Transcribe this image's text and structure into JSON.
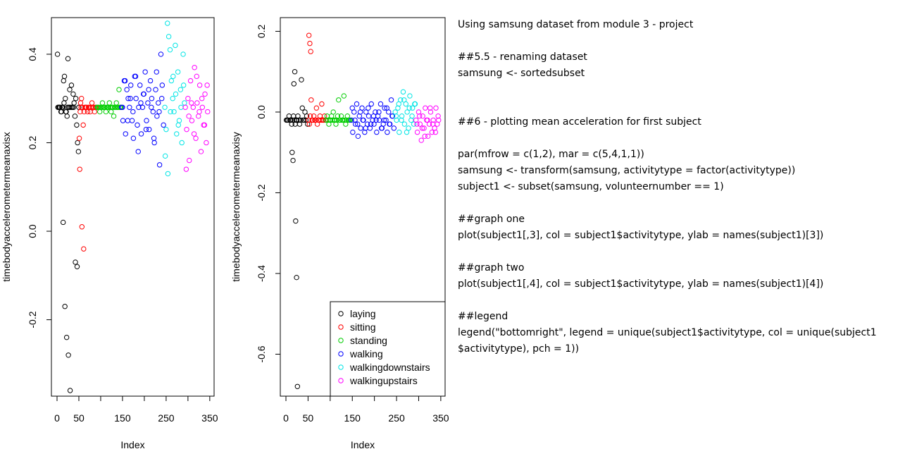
{
  "colors": {
    "laying": "#000000",
    "sitting": "#ff0000",
    "standing": "#00cd00",
    "walking": "#0000ff",
    "walkingdownstairs": "#00e5e5",
    "walkingupstairs": "#ff00ff"
  },
  "chart_data": [
    {
      "type": "scatter",
      "title": "",
      "xlabel": "Index",
      "ylabel": "timebodyaccelerometermeanaxisx",
      "xlim": [
        0,
        347
      ],
      "ylim": [
        -0.36,
        0.47
      ],
      "xticks": [
        0,
        50,
        150,
        250,
        350
      ],
      "yticks": [
        -0.2,
        0.0,
        0.2,
        0.4
      ],
      "grid": false,
      "series": [
        {
          "name": "laying",
          "color": "#000000",
          "x": [
            1,
            3,
            5,
            7,
            9,
            11,
            13,
            15,
            17,
            19,
            21,
            23,
            25,
            27,
            29,
            31,
            33,
            35,
            37,
            39,
            41,
            43,
            45,
            47,
            49,
            2,
            6,
            10,
            14,
            18,
            22,
            26,
            30,
            34,
            38,
            42,
            46,
            50,
            12,
            16,
            20,
            24,
            28
          ],
          "y": [
            0.4,
            0.28,
            0.28,
            0.28,
            0.27,
            0.28,
            0.28,
            0.34,
            0.35,
            0.3,
            0.27,
            0.26,
            0.39,
            0.28,
            0.32,
            0.28,
            0.33,
            0.28,
            0.31,
            0.29,
            0.26,
            0.3,
            0.24,
            0.2,
            0.18,
            0.28,
            0.28,
            0.27,
            0.02,
            -0.17,
            -0.24,
            -0.28,
            -0.36,
            0.28,
            0.28,
            -0.07,
            -0.08,
            0.28,
            0.28,
            0.29,
            0.27,
            0.28,
            0.28
          ]
        },
        {
          "name": "sitting",
          "color": "#ff0000",
          "x": [
            52,
            54,
            56,
            58,
            60,
            62,
            64,
            66,
            68,
            70,
            72,
            74,
            76,
            78,
            80,
            82,
            84,
            86,
            88,
            90,
            53,
            57,
            61,
            65,
            51,
            55
          ],
          "y": [
            0.14,
            0.29,
            0.3,
            0.28,
            0.24,
            0.27,
            0.28,
            0.28,
            0.28,
            0.27,
            0.28,
            0.28,
            0.27,
            0.28,
            0.29,
            0.28,
            0.28,
            0.27,
            0.28,
            0.28,
            0.27,
            0.01,
            -0.04,
            0.28,
            0.21,
            0.28
          ]
        },
        {
          "name": "standing",
          "color": "#00cd00",
          "x": [
            92,
            94,
            96,
            98,
            100,
            102,
            104,
            106,
            108,
            110,
            112,
            114,
            116,
            118,
            120,
            122,
            124,
            126,
            128,
            130,
            132,
            134,
            136,
            138,
            140,
            142,
            144,
            146
          ],
          "y": [
            0.28,
            0.28,
            0.28,
            0.27,
            0.28,
            0.28,
            0.29,
            0.28,
            0.28,
            0.28,
            0.27,
            0.28,
            0.28,
            0.28,
            0.29,
            0.28,
            0.27,
            0.28,
            0.28,
            0.26,
            0.28,
            0.28,
            0.29,
            0.28,
            0.28,
            0.32,
            0.28,
            0.28
          ],
          "y2": []
        },
        {
          "name": "walking",
          "color": "#0000ff",
          "x": [
            148,
            151,
            154,
            157,
            160,
            163,
            166,
            169,
            172,
            175,
            178,
            181,
            184,
            187,
            190,
            193,
            196,
            199,
            202,
            205,
            208,
            211,
            214,
            217,
            220,
            223,
            226,
            229,
            232,
            235,
            238,
            241,
            244,
            150,
            156,
            162,
            168,
            174,
            180,
            186,
            192,
            198,
            204,
            210,
            216,
            222,
            228,
            234,
            240
          ],
          "y": [
            0.28,
            0.25,
            0.34,
            0.22,
            0.32,
            0.3,
            0.28,
            0.33,
            0.25,
            0.21,
            0.35,
            0.3,
            0.24,
            0.28,
            0.33,
            0.22,
            0.28,
            0.31,
            0.36,
            0.25,
            0.29,
            0.23,
            0.34,
            0.3,
            0.27,
            0.2,
            0.32,
            0.26,
            0.29,
            0.15,
            0.4,
            0.33,
            0.24,
            0.28,
            0.34,
            0.25,
            0.3,
            0.27,
            0.35,
            0.18,
            0.29,
            0.31,
            0.23,
            0.32,
            0.28,
            0.21,
            0.36,
            0.27,
            0.3
          ]
        },
        {
          "name": "walkingdownstairs",
          "color": "#00e5e5",
          "x": [
            247,
            250,
            253,
            256,
            259,
            262,
            265,
            268,
            271,
            274,
            277,
            280,
            283,
            286,
            289,
            292,
            248,
            254,
            260,
            266,
            272,
            278,
            284,
            290
          ],
          "y": [
            0.28,
            0.23,
            0.47,
            0.44,
            0.41,
            0.34,
            0.3,
            0.27,
            0.42,
            0.22,
            0.36,
            0.25,
            0.32,
            0.2,
            0.4,
            0.29,
            0.17,
            0.13,
            0.27,
            0.35,
            0.31,
            0.24,
            0.28,
            0.33
          ]
        },
        {
          "name": "walkingupstairs",
          "color": "#ff00ff",
          "x": [
            294,
            297,
            300,
            303,
            306,
            309,
            312,
            315,
            318,
            321,
            324,
            327,
            330,
            333,
            336,
            339,
            342,
            345,
            296,
            302,
            308,
            314,
            320,
            326,
            332,
            338,
            344
          ],
          "y": [
            0.28,
            0.23,
            0.3,
            0.16,
            0.34,
            0.25,
            0.28,
            0.37,
            0.21,
            0.29,
            0.26,
            0.33,
            0.18,
            0.28,
            0.24,
            0.31,
            0.2,
            0.27,
            0.14,
            0.26,
            0.29,
            0.22,
            0.35,
            0.27,
            0.3,
            0.24,
            0.33
          ]
        }
      ]
    },
    {
      "type": "scatter",
      "title": "",
      "xlabel": "Index",
      "ylabel": "timebodyaccelerometermeanaxisy",
      "xlim": [
        0,
        347
      ],
      "ylim": [
        -0.69,
        0.22
      ],
      "xticks": [
        0,
        50,
        150,
        250,
        350
      ],
      "yticks": [
        -0.6,
        -0.4,
        -0.2,
        0.0,
        0.2
      ],
      "grid": false,
      "legend": {
        "position": "bottomright",
        "entries": [
          "laying",
          "sitting",
          "standing",
          "walking",
          "walkingdownstairs",
          "walkingupstairs"
        ]
      },
      "series": [
        {
          "name": "laying",
          "color": "#000000",
          "x": [
            1,
            3,
            5,
            7,
            9,
            11,
            13,
            15,
            17,
            19,
            21,
            23,
            25,
            27,
            29,
            31,
            33,
            35,
            37,
            39,
            41,
            43,
            45,
            47,
            49,
            14,
            16,
            18,
            20,
            22,
            24,
            26
          ],
          "y": [
            -0.02,
            -0.02,
            -0.02,
            -0.01,
            -0.02,
            -0.02,
            -0.03,
            -0.02,
            -0.01,
            -0.02,
            -0.03,
            -0.02,
            -0.02,
            -0.01,
            -0.02,
            -0.03,
            -0.02,
            0.08,
            0.01,
            -0.02,
            -0.02,
            0.0,
            -0.02,
            -0.01,
            -0.03,
            -0.1,
            -0.12,
            0.07,
            0.1,
            -0.27,
            -0.41,
            -0.68
          ]
        },
        {
          "name": "sitting",
          "color": "#ff0000",
          "x": [
            51,
            53,
            55,
            57,
            59,
            61,
            63,
            65,
            67,
            69,
            71,
            73,
            75,
            77,
            79,
            81,
            83,
            85,
            87,
            89,
            52,
            54,
            56
          ],
          "y": [
            -0.02,
            -0.03,
            -0.01,
            0.03,
            -0.02,
            -0.02,
            -0.01,
            -0.02,
            -0.02,
            0.01,
            -0.03,
            -0.02,
            -0.02,
            -0.01,
            -0.02,
            0.02,
            -0.02,
            -0.02,
            -0.01,
            -0.02,
            0.19,
            0.17,
            0.15
          ]
        },
        {
          "name": "standing",
          "color": "#00cd00",
          "x": [
            91,
            93,
            95,
            97,
            99,
            101,
            103,
            105,
            107,
            109,
            111,
            113,
            115,
            117,
            119,
            121,
            123,
            125,
            127,
            129,
            131,
            133,
            135,
            137,
            139,
            141,
            143,
            145
          ],
          "y": [
            -0.02,
            -0.01,
            -0.02,
            -0.03,
            -0.02,
            -0.02,
            -0.01,
            -0.02,
            0.0,
            -0.02,
            -0.02,
            -0.03,
            -0.02,
            -0.01,
            0.03,
            -0.02,
            -0.02,
            -0.01,
            -0.02,
            -0.02,
            0.04,
            -0.02,
            -0.03,
            -0.02,
            -0.01,
            -0.02,
            -0.02,
            -0.02
          ]
        },
        {
          "name": "walking",
          "color": "#0000ff",
          "x": [
            148,
            151,
            154,
            157,
            160,
            163,
            166,
            169,
            172,
            175,
            178,
            181,
            184,
            187,
            190,
            193,
            196,
            199,
            202,
            205,
            208,
            211,
            214,
            217,
            220,
            223,
            226,
            229,
            232,
            235,
            238,
            241,
            244,
            150,
            156,
            162,
            168,
            174,
            180,
            186,
            192,
            198,
            204,
            210,
            216,
            222,
            228,
            234,
            240
          ],
          "y": [
            -0.02,
            -0.05,
            0.0,
            -0.03,
            0.02,
            -0.06,
            -0.01,
            -0.04,
            0.01,
            -0.02,
            -0.05,
            0.0,
            -0.03,
            -0.01,
            -0.04,
            0.02,
            -0.02,
            -0.03,
            0.0,
            -0.05,
            -0.01,
            -0.02,
            0.02,
            -0.04,
            -0.03,
            0.01,
            -0.02,
            -0.05,
            0.0,
            -0.03,
            0.03,
            -0.01,
            -0.04,
            0.01,
            -0.02,
            -0.03,
            0.0,
            -0.02,
            -0.04,
            0.01,
            -0.03,
            -0.01,
            -0.02,
            0.0,
            -0.04,
            -0.02,
            0.01,
            -0.03,
            -0.01
          ]
        },
        {
          "name": "walkingdownstairs",
          "color": "#00e5e5",
          "x": [
            247,
            250,
            253,
            256,
            259,
            262,
            265,
            268,
            271,
            274,
            277,
            280,
            283,
            286,
            289,
            292,
            249,
            255,
            261,
            267,
            273,
            279,
            285,
            291
          ],
          "y": [
            0.0,
            -0.02,
            0.01,
            -0.05,
            0.03,
            -0.01,
            0.05,
            -0.03,
            0.02,
            0.0,
            -0.04,
            0.04,
            -0.02,
            0.01,
            -0.03,
            0.02,
            -0.01,
            0.02,
            -0.02,
            0.03,
            -0.05,
            0.01,
            -0.01,
            0.02
          ]
        },
        {
          "name": "walkingupstairs",
          "color": "#ff00ff",
          "x": [
            294,
            297,
            300,
            303,
            306,
            309,
            312,
            315,
            318,
            321,
            324,
            327,
            330,
            333,
            336,
            339,
            342,
            345,
            296,
            302,
            308,
            314,
            320,
            326,
            332,
            338,
            344
          ],
          "y": [
            -0.02,
            -0.05,
            0.0,
            -0.03,
            -0.07,
            -0.01,
            -0.04,
            0.01,
            -0.02,
            -0.06,
            -0.03,
            0.0,
            -0.05,
            -0.02,
            -0.04,
            0.01,
            -0.03,
            -0.02,
            -0.03,
            -0.01,
            -0.04,
            -0.06,
            -0.02,
            0.01,
            -0.03,
            -0.05,
            -0.01
          ]
        }
      ]
    }
  ],
  "code_lines": [
    "Using samsung dataset from module 3 - project",
    "",
    "##5.5 - renaming dataset",
    "samsung <- sortedsubset",
    "",
    "",
    "##6 - plotting mean acceleration for first subject",
    "",
    "par(mfrow = c(1,2), mar = c(5,4,1,1))",
    "samsung <- transform(samsung, activitytype = factor(activitytype))",
    "subject1 <- subset(samsung, volunteernumber == 1)",
    "",
    "##graph one",
    "plot(subject1[,3], col = subject1$activitytype, ylab = names(subject1)[3])",
    "",
    "##graph two",
    "plot(subject1[,4], col = subject1$activitytype, ylab = names(subject1)[4])",
    "",
    "##legend",
    "legend(\"bottomright\", legend = unique(subject1$activitytype, col = unique(subject1",
    "$activitytype), pch = 1))"
  ]
}
